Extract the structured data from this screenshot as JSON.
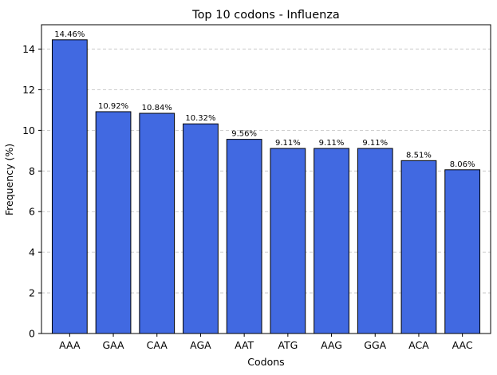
{
  "chart_data": {
    "type": "bar",
    "title": "Top 10 codons - Influenza",
    "xlabel": "Codons",
    "ylabel": "Frequency (%)",
    "categories": [
      "AAA",
      "GAA",
      "CAA",
      "AGA",
      "AAT",
      "ATG",
      "AAG",
      "GGA",
      "ACA",
      "AAC"
    ],
    "values": [
      14.46,
      10.92,
      10.84,
      10.32,
      9.56,
      9.11,
      9.11,
      9.11,
      8.51,
      8.06
    ],
    "value_labels": [
      "14.46%",
      "10.92%",
      "10.84%",
      "10.32%",
      "9.56%",
      "9.11%",
      "9.11%",
      "9.11%",
      "8.51%",
      "8.06%"
    ],
    "yticks": [
      0,
      2,
      4,
      6,
      8,
      10,
      12,
      14
    ],
    "ylim": [
      0,
      15.2
    ],
    "grid": "y-dashed",
    "bar_color": "#4169e1",
    "edge_color": "#000000",
    "grid_color": "#c0c0c0"
  }
}
